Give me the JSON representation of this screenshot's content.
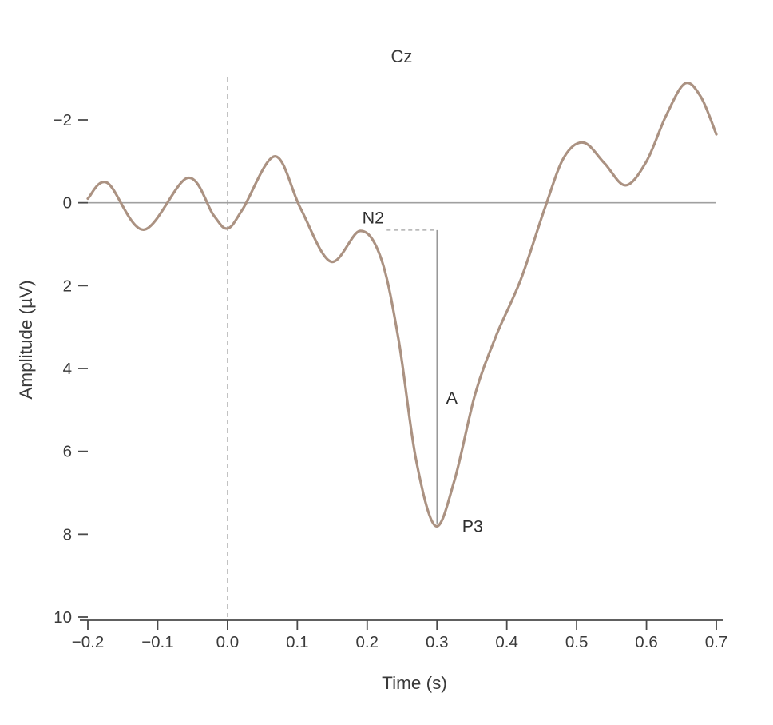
{
  "chart_data": {
    "type": "line",
    "title": "Cz",
    "xlabel": "Time (s)",
    "ylabel": "Amplitude (µV)",
    "xlim": [
      -0.2,
      0.7
    ],
    "ylim": [
      -2,
      10
    ],
    "y_axis_inverted": true,
    "grid": false,
    "legend": "none",
    "x_ticks": [
      {
        "v": -0.2,
        "label": "−0.2"
      },
      {
        "v": -0.1,
        "label": "−0.1"
      },
      {
        "v": 0.0,
        "label": "0.0"
      },
      {
        "v": 0.1,
        "label": "0.1"
      },
      {
        "v": 0.2,
        "label": "0.2"
      },
      {
        "v": 0.3,
        "label": "0.3"
      },
      {
        "v": 0.4,
        "label": "0.4"
      },
      {
        "v": 0.5,
        "label": "0.5"
      },
      {
        "v": 0.6,
        "label": "0.6"
      },
      {
        "v": 0.7,
        "label": "0.7"
      }
    ],
    "y_ticks": [
      {
        "v": -2,
        "label": "−2"
      },
      {
        "v": 0,
        "label": "0"
      },
      {
        "v": 2,
        "label": "2"
      },
      {
        "v": 4,
        "label": "4"
      },
      {
        "v": 6,
        "label": "6"
      },
      {
        "v": 8,
        "label": "8"
      },
      {
        "v": 10,
        "label": "10"
      }
    ],
    "series": [
      {
        "name": "Cz",
        "color": "#ab9282",
        "stroke_width": 3.2,
        "points": [
          [
            -0.2,
            -0.1
          ],
          [
            -0.172,
            -0.48
          ],
          [
            -0.12,
            0.65
          ],
          [
            -0.057,
            -0.6
          ],
          [
            -0.02,
            0.3
          ],
          [
            0.0,
            0.62
          ],
          [
            0.022,
            0.15
          ],
          [
            0.068,
            -1.12
          ],
          [
            0.105,
            0.15
          ],
          [
            0.148,
            1.42
          ],
          [
            0.19,
            0.68
          ],
          [
            0.22,
            1.35
          ],
          [
            0.245,
            3.3
          ],
          [
            0.27,
            6.2
          ],
          [
            0.298,
            7.8
          ],
          [
            0.325,
            6.7
          ],
          [
            0.355,
            4.6
          ],
          [
            0.385,
            3.2
          ],
          [
            0.42,
            1.85
          ],
          [
            0.455,
            0.1
          ],
          [
            0.482,
            -1.1
          ],
          [
            0.51,
            -1.45
          ],
          [
            0.54,
            -0.95
          ],
          [
            0.57,
            -0.42
          ],
          [
            0.6,
            -1.0
          ],
          [
            0.628,
            -2.1
          ],
          [
            0.655,
            -2.88
          ],
          [
            0.678,
            -2.55
          ],
          [
            0.7,
            -1.65
          ]
        ]
      }
    ],
    "reference_lines": {
      "zero_amplitude_line": {
        "v": 0,
        "color": "#a0a0a0",
        "style": "solid"
      },
      "stim_onset_line": {
        "t": 0.0,
        "color": "#bdbdbd",
        "style": "dashed"
      }
    },
    "measurement": {
      "dashed_connector": {
        "from": [
          0.228,
          0.66
        ],
        "to": [
          0.3,
          0.66
        ],
        "color": "#b0b0b0"
      },
      "amplitude_line": {
        "from": [
          0.3,
          0.66
        ],
        "to": [
          0.3,
          7.74
        ],
        "color": "#8f8f8f"
      }
    },
    "annotations": [
      {
        "text": "N2",
        "x": 0.193,
        "y": 0.5,
        "anchor": "start"
      },
      {
        "text": "A",
        "x": 0.313,
        "y": 4.85,
        "anchor": "start"
      },
      {
        "text": "P3",
        "x": 0.336,
        "y": 7.95,
        "anchor": "start"
      }
    ]
  },
  "colors": {
    "waveform": "#ab9282",
    "axis": "#4a4a4a",
    "zero_line": "#a0a0a0",
    "onset_dash": "#bdbdbd",
    "measure_dash": "#b0b0b0",
    "measure_line": "#8f8f8f",
    "text": "#3a3a3a"
  }
}
